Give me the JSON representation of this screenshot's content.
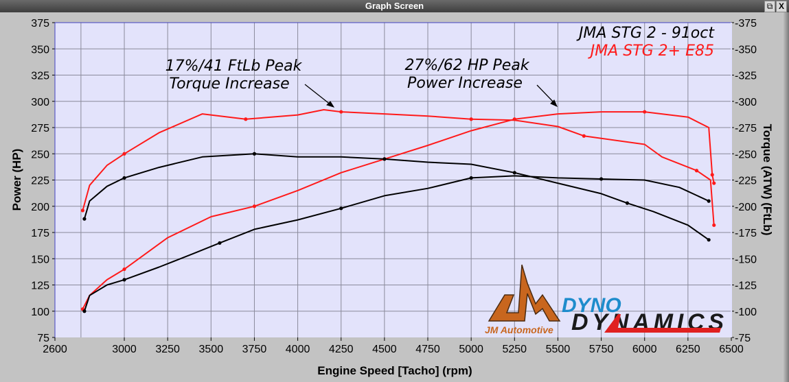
{
  "window": {
    "title": "Graph Screen",
    "restore_icon": "restore-icon",
    "close_label": "X"
  },
  "colors": {
    "e85": "#ff1a1a",
    "oct91": "#000000",
    "plot_bg": "#e3e3fb",
    "grid": "#8a8a9a"
  },
  "chart_data": {
    "type": "line",
    "xlabel": "Engine Speed [Tacho] (rpm)",
    "ylabel": "Power (HP)",
    "y2label": "Torque (ATW) (FtLb)",
    "xlim": [
      2600,
      6500
    ],
    "ylim": [
      75,
      375
    ],
    "y2lim": [
      75,
      375
    ],
    "xticks": [
      "2600",
      "3000",
      "3250",
      "3500",
      "3750",
      "4000",
      "4250",
      "4500",
      "4750",
      "5000",
      "5250",
      "5500",
      "5750",
      "6000",
      "6250",
      "6500"
    ],
    "yticks": [
      "75",
      "100",
      "125",
      "150",
      "175",
      "200",
      "225",
      "250",
      "275",
      "300",
      "325",
      "350",
      "375"
    ],
    "grid": true,
    "legend": {
      "placement": "top-right",
      "entries": [
        {
          "name": "JMA STG 2 - 91oct",
          "color": "#000000"
        },
        {
          "name": "JMA STG 2+ E85",
          "color": "#ff1a1a"
        }
      ]
    },
    "annotations": [
      {
        "line1": "17%/41 FtLb Peak",
        "line2": "Torque Increase"
      },
      {
        "line1": "27%/62 HP Peak",
        "line2": "Power Increase"
      }
    ],
    "series": [
      {
        "name": "JMA STG 2+ E85 Power",
        "axis": "left",
        "color": "#ff1a1a",
        "x": [
          2760,
          2800,
          2900,
          3000,
          3250,
          3500,
          3750,
          4000,
          4250,
          4500,
          4750,
          5000,
          5250,
          5500,
          5750,
          6000,
          6250,
          6370,
          6390,
          6400
        ],
        "y": [
          102,
          115,
          130,
          140,
          170,
          190,
          200,
          215,
          232,
          245,
          258,
          272,
          283,
          288,
          290,
          290,
          285,
          275,
          230,
          222
        ]
      },
      {
        "name": "JMA STG 2+ E85 Torque",
        "axis": "right",
        "color": "#ff1a1a",
        "x": [
          2760,
          2800,
          2900,
          3000,
          3200,
          3450,
          3700,
          4000,
          4150,
          4250,
          4500,
          4750,
          5000,
          5250,
          5500,
          5650,
          6000,
          6100,
          6300,
          6380,
          6400
        ],
        "y": [
          196,
          220,
          239,
          250,
          270,
          288,
          283,
          287,
          292,
          290,
          288,
          286,
          283,
          282,
          276,
          267,
          259,
          247,
          234,
          225,
          182
        ]
      },
      {
        "name": "JMA STG 2 - 91oct Power",
        "axis": "left",
        "color": "#000000",
        "x": [
          2770,
          2800,
          2900,
          3000,
          3200,
          3400,
          3550,
          3750,
          4000,
          4250,
          4500,
          4750,
          5000,
          5250,
          5500,
          5750,
          6000,
          6200,
          6370
        ],
        "y": [
          100,
          115,
          125,
          130,
          142,
          155,
          165,
          178,
          187,
          198,
          210,
          217,
          227,
          229,
          227,
          226,
          225,
          218,
          205
        ]
      },
      {
        "name": "JMA STG 2 - 91oct Torque",
        "axis": "right",
        "color": "#000000",
        "x": [
          2770,
          2800,
          2900,
          3000,
          3200,
          3450,
          3750,
          4000,
          4250,
          4500,
          4750,
          5000,
          5250,
          5500,
          5750,
          5900,
          6050,
          6250,
          6370
        ],
        "y": [
          188,
          205,
          219,
          227,
          237,
          247,
          250,
          247,
          247,
          245,
          242,
          240,
          232,
          222,
          212,
          203,
          195,
          182,
          168
        ]
      }
    ]
  },
  "logos": {
    "jm": "JM Automotive",
    "dyno1": "DYNO",
    "dyno2": "DYNAMICS"
  }
}
